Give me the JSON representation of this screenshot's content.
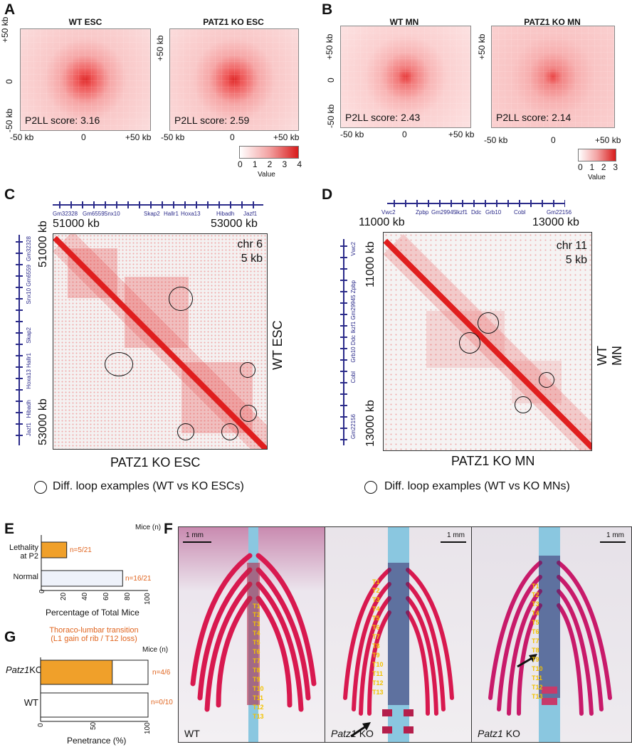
{
  "panels": {
    "A": {
      "label": "A",
      "left_title": "WT ESC",
      "right_title": "PATZ1 KO ESC",
      "left_score": "P2LL score: 3.16",
      "right_score": "P2LL score: 2.59",
      "y_ticks": [
        "+50 kb",
        "0",
        "-50 kb"
      ],
      "x_ticks": [
        "-50 kb",
        "0",
        "+50 kb"
      ],
      "colorbar_ticks": [
        "0",
        "1",
        "2",
        "3",
        "4"
      ],
      "colorbar_label": "Value"
    },
    "B": {
      "label": "B",
      "left_title": "WT MN",
      "right_title": "PATZ1 KO MN",
      "left_score": "P2LL score: 2.43",
      "right_score": "P2LL score: 2.14",
      "y_ticks": [
        "+50 kb",
        "0",
        "-50 kb"
      ],
      "x_ticks": [
        "-50 kb",
        "0",
        "+50 kb"
      ],
      "colorbar_ticks": [
        "0",
        "1",
        "2",
        "3"
      ],
      "colorbar_label": "Value"
    },
    "C": {
      "label": "C",
      "genes": [
        "Gm32328",
        "Gm6559",
        "Snx10",
        "Skap2",
        "Hallr1",
        "Hoxa13",
        "Hibadh",
        "Jazf1"
      ],
      "vgenes": [
        "Gm32328",
        "Snx10 Gm6559",
        "Skap2",
        "Hoxa13 Hallr1",
        "Hibadh",
        "Jazf1"
      ],
      "x_start": "51000 kb",
      "x_end": "53000 kb",
      "y_start": "51000 kb",
      "y_end": "53000 kb",
      "chrom": "chr 6",
      "res": "5 kb",
      "upper_label": "WT ESC",
      "lower_label": "PATZ1 KO ESC",
      "legend": "Diff. loop examples (WT vs KO ESCs)"
    },
    "D": {
      "label": "D",
      "genes": [
        "Vwc2",
        "Zpbp",
        "Gm29945",
        "Ikzf1",
        "Ddc",
        "Grb10",
        "Cobl",
        "Gm22156"
      ],
      "vgenes": [
        "Vwc2",
        "Grb10 Ddc Ikzf1 Gm29945 Zpbp",
        "Cobl",
        "Gm22156"
      ],
      "x_start": "11000 kb",
      "x_end": "13000 kb",
      "y_start": "11000 kb",
      "y_end": "13000 kb",
      "chrom": "chr 11",
      "res": "5 kb",
      "upper_label": "WT MN",
      "lower_label": "PATZ1 KO MN",
      "legend": "Diff. loop examples (WT vs KO MNs)"
    },
    "E": {
      "label": "E",
      "header": "Mice (n)",
      "xlabel": "Percentage of Total Mice",
      "ticks": [
        "0",
        "20",
        "40",
        "60",
        "80",
        "100"
      ],
      "rows": [
        {
          "label": "Lethality\nat P2",
          "annot": "n=5/21"
        },
        {
          "label": "Normal",
          "annot": "n=16/21"
        }
      ]
    },
    "F": {
      "label": "F",
      "scale": "1 mm",
      "genotypes": [
        "WT",
        "Patz1",
        "Patz1"
      ],
      "ko_suffix": "KO",
      "vertebrae": [
        "T1",
        "T2",
        "T3",
        "T4",
        "T5",
        "T6",
        "T7",
        "T8",
        "T9",
        "T10",
        "T11",
        "T12",
        "T13"
      ]
    },
    "G": {
      "label": "G",
      "title": "Thoraco-lumbar transition\n(L1 gain of rib / T12 loss)",
      "header": "Mice (n)",
      "xlabel": "Penetrance (%)",
      "ticks": [
        "0",
        "50",
        "100"
      ],
      "rows": [
        {
          "label_italic": "Patz1",
          "label_rest": "KO",
          "annot": "n=4/6"
        },
        {
          "label_italic": "",
          "label_rest": "WT",
          "annot": "n=0/10"
        }
      ]
    }
  },
  "colors": {
    "red": "#e01e1e",
    "orange": "#f0a02a",
    "annot": "#e0641e",
    "gene": "#2b2b8a"
  },
  "chart_data": [
    {
      "type": "bar",
      "title": "",
      "categories": [
        "Lethality at P2",
        "Normal"
      ],
      "values": [
        23.8,
        76.2
      ],
      "annotations": [
        "n=5/21",
        "n=16/21"
      ],
      "xlabel": "Percentage of Total Mice",
      "xlim": [
        0,
        100
      ],
      "orientation": "horizontal"
    },
    {
      "type": "bar",
      "title": "Thoraco-lumbar transition (L1 gain of rib / T12 loss)",
      "categories": [
        "Patz1 KO",
        "WT"
      ],
      "values": [
        66.7,
        0
      ],
      "annotations": [
        "n=4/6",
        "n=0/10"
      ],
      "xlabel": "Penetrance (%)",
      "xlim": [
        0,
        100
      ],
      "orientation": "horizontal"
    }
  ]
}
